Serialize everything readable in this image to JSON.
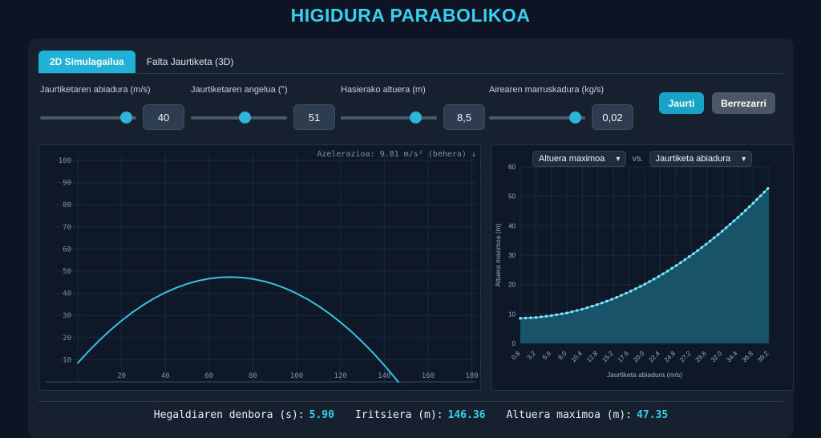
{
  "page_title": "HIGIDURA PARABOLIKOA",
  "tabs": [
    {
      "label": "2D Simulagailua",
      "active": true
    },
    {
      "label": "Falta Jaurtiketa (3D)",
      "active": false
    }
  ],
  "controls": {
    "sliders": [
      {
        "label": "Jaurtiketaren abiadura (m/s)",
        "value": "40",
        "percent": 90
      },
      {
        "label": "Jaurtiketaren angelua (°)",
        "value": "51",
        "percent": 57
      },
      {
        "label": "Hasierako altuera (m)",
        "value": "8,5",
        "percent": 78
      },
      {
        "label": "Airearen marruskadura (kg/s)",
        "value": "0,02",
        "percent": 90
      }
    ],
    "launch_button": "Jaurti",
    "reset_button": "Berrezarri"
  },
  "right_chart_header": {
    "y_select": "Altuera maximoa",
    "vs_label": "vs.",
    "x_select": "Jaurtiketa abiadura"
  },
  "stats": [
    {
      "label": "Hegaldiaren denbora (s):",
      "value": "5.90"
    },
    {
      "label": "Iritsiera (m):",
      "value": "146.36"
    },
    {
      "label": "Altuera maximoa (m):",
      "value": "47.35"
    }
  ],
  "colors": {
    "accent": "#1fb1d6",
    "title": "#38d0ee",
    "grid": "#1c2940",
    "axis": "#3a4d66",
    "trajectory": "#38c1e0",
    "annotation": "#e0606f",
    "area_fill": "#175469",
    "area_line": "#44d2e8",
    "area_dots": "#86e8f4",
    "stat_value": "#31d4ec"
  },
  "chart_data": [
    {
      "type": "line",
      "name": "trajectory",
      "xlim": [
        0,
        182
      ],
      "ylim": [
        0,
        100
      ],
      "xticks": [
        20,
        40,
        60,
        80,
        100,
        120,
        140,
        160,
        180
      ],
      "yticks": [
        10,
        20,
        30,
        40,
        50,
        60,
        70,
        80,
        90,
        100
      ],
      "annotation": "Azelerazioa: 9.81 m/s² (behera) ↓",
      "grid": true,
      "x": [
        0,
        5,
        10,
        15,
        20,
        25,
        30,
        35,
        40,
        45,
        50,
        55,
        60,
        65,
        70,
        75,
        80,
        85,
        90,
        95,
        100,
        105,
        110,
        115,
        120,
        125,
        130,
        135,
        140,
        145,
        146.36
      ],
      "y": [
        8.5,
        13.89,
        18.87,
        23.45,
        27.63,
        31.41,
        34.78,
        37.76,
        40.33,
        42.51,
        44.28,
        45.65,
        46.62,
        47.18,
        47.35,
        47.11,
        46.47,
        45.44,
        44.0,
        42.15,
        39.91,
        37.27,
        34.22,
        30.77,
        26.92,
        22.67,
        18.02,
        12.97,
        7.51,
        1.66,
        0
      ]
    },
    {
      "type": "area",
      "name": "max-height-vs-launch-speed",
      "xlabel": "Jaurtiketa abiadura (m/s)",
      "ylabel": "Altuera maximoa (m)",
      "xlim": [
        0.8,
        39.2
      ],
      "ylim": [
        0,
        60
      ],
      "xticks": [
        0.8,
        3.2,
        5.6,
        8.0,
        10.4,
        12.8,
        15.2,
        17.6,
        20.0,
        22.4,
        24.8,
        27.2,
        29.6,
        32.0,
        34.4,
        36.8,
        39.2
      ],
      "yticks": [
        0,
        10,
        20,
        30,
        40,
        50,
        60
      ],
      "grid": true,
      "x": [
        0.8,
        3.2,
        5.6,
        8.0,
        10.4,
        12.8,
        15.2,
        17.6,
        20.0,
        22.4,
        24.8,
        27.2,
        29.6,
        32.0,
        34.4,
        36.8,
        39.2
      ],
      "y": [
        8.52,
        8.8,
        9.41,
        10.35,
        11.63,
        13.25,
        15.19,
        17.47,
        20.08,
        23.03,
        26.31,
        29.93,
        33.87,
        38.15,
        42.77,
        47.71,
        53.0
      ]
    }
  ]
}
